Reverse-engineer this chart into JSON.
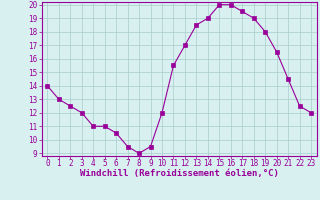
{
  "x": [
    0,
    1,
    2,
    3,
    4,
    5,
    6,
    7,
    8,
    9,
    10,
    11,
    12,
    13,
    14,
    15,
    16,
    17,
    18,
    19,
    20,
    21,
    22,
    23
  ],
  "y": [
    14,
    13,
    12.5,
    12,
    11,
    11,
    10.5,
    9.5,
    9,
    9.5,
    12,
    15.5,
    17,
    18.5,
    19,
    20,
    20,
    19.5,
    19,
    18,
    16.5,
    14.5,
    12.5,
    12
  ],
  "line_color": "#990099",
  "marker": "s",
  "marker_size": 2.5,
  "bg_color": "#d8f0f0",
  "grid_color": "#aacccc",
  "xlabel": "Windchill (Refroidissement éolien,°C)",
  "xlabel_color": "#990099",
  "xlabel_fontsize": 6.5,
  "ylim": [
    9,
    20
  ],
  "xlim": [
    -0.5,
    23.5
  ],
  "yticks": [
    9,
    10,
    11,
    12,
    13,
    14,
    15,
    16,
    17,
    18,
    19,
    20
  ],
  "xticks": [
    0,
    1,
    2,
    3,
    4,
    5,
    6,
    7,
    8,
    9,
    10,
    11,
    12,
    13,
    14,
    15,
    16,
    17,
    18,
    19,
    20,
    21,
    22,
    23
  ],
  "tick_color": "#990099",
  "tick_fontsize": 5.5,
  "spine_color": "#990099"
}
